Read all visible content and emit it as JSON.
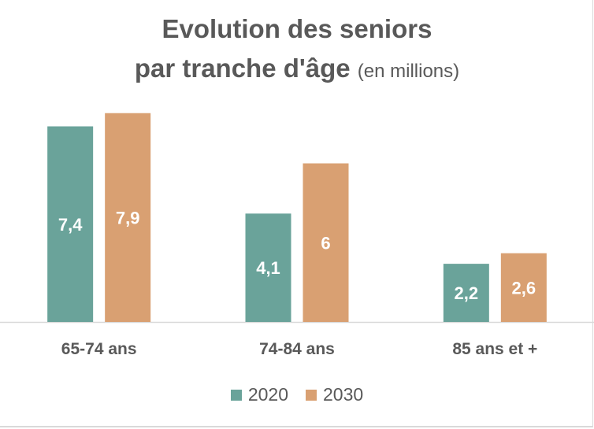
{
  "chart_data": {
    "type": "bar",
    "title": "Evolution des seniors",
    "title_line2": "par tranche d'âge",
    "title_suffix": "(en millions)",
    "categories": [
      "65-74 ans",
      "74-84 ans",
      "85 ans et +"
    ],
    "series": [
      {
        "name": "2020",
        "values": [
          7.4,
          4.1,
          2.2
        ],
        "labels": [
          "7,4",
          "4,1",
          "2,2"
        ],
        "color": "#6aa39a"
      },
      {
        "name": "2030",
        "values": [
          7.9,
          6,
          2.6
        ],
        "labels": [
          "7,9",
          "6",
          "2,6"
        ],
        "color": "#d9a072"
      }
    ],
    "ylim": [
      0,
      9.5
    ],
    "grid": false,
    "legend_position": "bottom",
    "axis_color": "#d9d9d9",
    "label_color": "#595959"
  }
}
